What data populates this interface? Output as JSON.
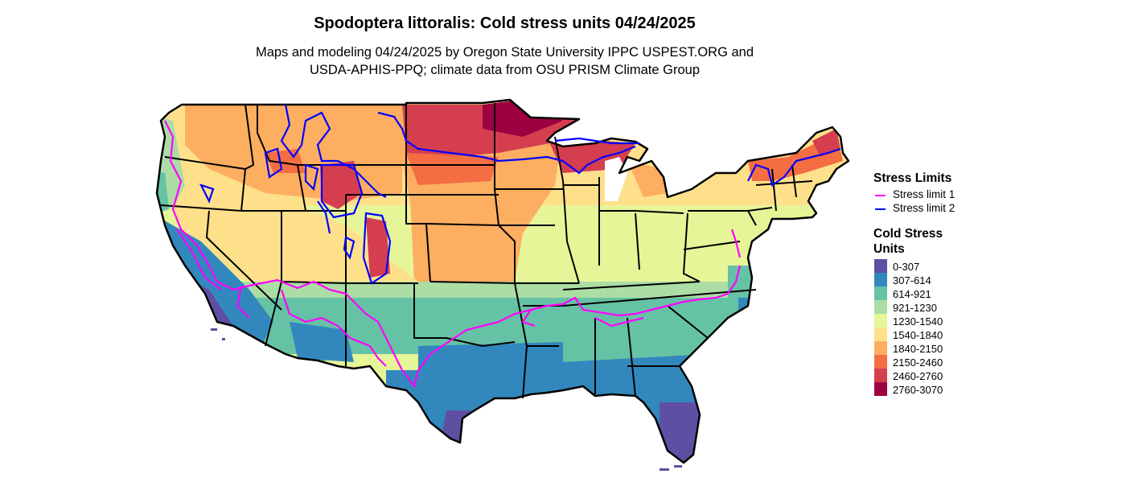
{
  "title": "Spodoptera littoralis: Cold stress units 04/24/2025",
  "subtitle_line1": "Maps and modeling 04/24/2025 by Oregon State University IPPC USPEST.ORG and",
  "subtitle_line2": "USDA-APHIS-PPQ; climate data from OSU PRISM Climate Group",
  "legend": {
    "stress_limits_title": "Stress Limits",
    "lines": [
      {
        "label": "Stress limit 1",
        "color": "#ff00ff"
      },
      {
        "label": "Stress limit 2",
        "color": "#0000ff"
      }
    ],
    "units_title_line1": "Cold Stress",
    "units_title_line2": "Units",
    "bins": [
      {
        "label": "0-307",
        "color": "#5e4fa2"
      },
      {
        "label": "307-614",
        "color": "#3288bd"
      },
      {
        "label": "614-921",
        "color": "#66c2a5"
      },
      {
        "label": "921-1230",
        "color": "#abdda4"
      },
      {
        "label": "1230-1540",
        "color": "#e6f598"
      },
      {
        "label": "1540-1840",
        "color": "#fee08b"
      },
      {
        "label": "1840-2150",
        "color": "#fdae61"
      },
      {
        "label": "2150-2460",
        "color": "#f46d43"
      },
      {
        "label": "2460-2760",
        "color": "#d53e4f"
      },
      {
        "label": "2760-3070",
        "color": "#9e0142"
      }
    ]
  }
}
